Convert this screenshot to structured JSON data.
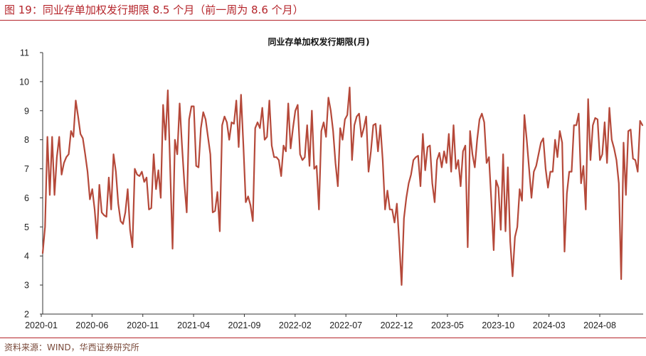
{
  "header": {
    "figure_title": "图 19：同业存单加权发行期限 8.5 个月（前一周为 8.6 个月）"
  },
  "footer": {
    "source": "资料来源：WIND，华西证券研究所"
  },
  "colors": {
    "accent": "#B5252B",
    "line": "#B5493A",
    "axis": "#333333"
  },
  "chart_data": {
    "type": "line",
    "title": "同业存单加权发行期限(月)",
    "xlabel": "",
    "ylabel": "",
    "ylim": [
      2,
      11
    ],
    "yticks": [
      2,
      3,
      4,
      5,
      6,
      7,
      8,
      9,
      10,
      11
    ],
    "xticks": [
      "2020-01",
      "2020-06",
      "2020-11",
      "2021-04",
      "2021-09",
      "2022-02",
      "2022-07",
      "2022-12",
      "2023-05",
      "2023-10",
      "2024-03",
      "2024-08"
    ],
    "grid": false,
    "legend": "none",
    "series": [
      {
        "name": "",
        "values": [
          4.1,
          5.0,
          8.1,
          6.1,
          8.1,
          6.1,
          7.4,
          8.1,
          6.8,
          7.2,
          7.4,
          7.5,
          8.3,
          8.1,
          9.35,
          8.8,
          8.2,
          8.05,
          7.5,
          6.9,
          5.95,
          6.3,
          5.6,
          4.6,
          6.45,
          5.5,
          5.4,
          5.35,
          6.7,
          5.6,
          7.5,
          6.9,
          5.8,
          5.2,
          5.1,
          5.5,
          6.3,
          4.9,
          4.3,
          7.0,
          6.8,
          6.75,
          6.9,
          6.55,
          6.7,
          5.6,
          5.65,
          7.5,
          6.3,
          6.95,
          6.0,
          9.2,
          8.0,
          9.7,
          7.0,
          4.25,
          8.0,
          7.5,
          9.25,
          7.8,
          6.5,
          5.5,
          8.7,
          9.15,
          9.15,
          7.1,
          7.05,
          8.4,
          8.95,
          8.7,
          8.1,
          7.5,
          5.5,
          5.55,
          6.2,
          4.85,
          8.5,
          8.8,
          8.6,
          8.0,
          8.6,
          8.55,
          9.35,
          7.75,
          9.55,
          7.8,
          5.85,
          6.05,
          5.75,
          5.2,
          8.4,
          8.6,
          8.4,
          9.1,
          8.0,
          8.1,
          9.35,
          7.8,
          7.4,
          7.4,
          7.3,
          6.75,
          7.8,
          7.6,
          9.25,
          7.7,
          8.4,
          9.0,
          9.2,
          7.5,
          7.3,
          7.4,
          8.5,
          7.1,
          9.0,
          7.0,
          7.1,
          5.6,
          8.3,
          8.6,
          8.1,
          9.45,
          9.0,
          8.3,
          7.2,
          6.4,
          8.4,
          8.0,
          8.7,
          8.85,
          9.8,
          7.3,
          8.5,
          8.8,
          8.9,
          8.1,
          8.4,
          8.8,
          6.9,
          7.6,
          8.5,
          8.55,
          7.6,
          8.5,
          7.3,
          5.6,
          6.25,
          5.6,
          5.6,
          5.15,
          5.8,
          4.5,
          3.0,
          5.3,
          6.0,
          6.5,
          6.8,
          7.3,
          7.4,
          7.45,
          6.4,
          8.2,
          6.95,
          7.75,
          7.8,
          6.5,
          5.85,
          7.3,
          7.55,
          7.05,
          7.6,
          7.2,
          8.2,
          6.9,
          8.5,
          7.0,
          7.3,
          6.4,
          7.6,
          7.8,
          4.3,
          8.3,
          7.5,
          7.05,
          8.0,
          8.7,
          8.9,
          8.6,
          7.2,
          7.4,
          5.9,
          4.2,
          6.6,
          6.35,
          4.9,
          7.5,
          4.85,
          7.05,
          4.5,
          3.3,
          4.65,
          5.0,
          6.3,
          5.9,
          8.85,
          8.0,
          7.0,
          6.0,
          6.9,
          7.1,
          7.5,
          7.9,
          8.05,
          7.0,
          6.35,
          6.9,
          6.9,
          8.0,
          7.4,
          8.3,
          7.9,
          4.15,
          6.15,
          6.9,
          6.9,
          8.5,
          8.5,
          8.9,
          6.5,
          7.1,
          5.6,
          9.4,
          7.3,
          8.5,
          8.75,
          8.7,
          7.3,
          7.5,
          8.6,
          7.2,
          9.1,
          8.0,
          7.7,
          7.3,
          6.5,
          3.2,
          7.9,
          6.1,
          8.3,
          8.35,
          7.35,
          7.3,
          6.9,
          8.65,
          8.5
        ]
      }
    ]
  }
}
